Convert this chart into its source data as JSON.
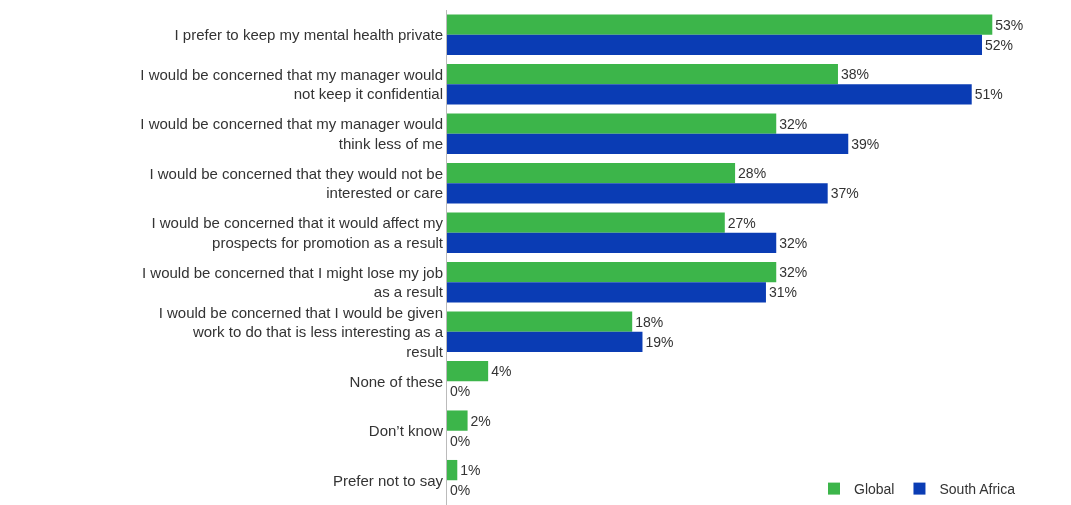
{
  "chart_data": {
    "type": "bar",
    "orientation": "horizontal",
    "categories": [
      "I prefer to keep my mental health private",
      "I would be concerned that my manager would not keep it confidential",
      "I would be concerned that my manager would think less of me",
      "I would be concerned that they would not be interested or care",
      "I would be concerned that it would affect my prospects for promotion as a result",
      "I would be concerned that I might lose my job as a result",
      "I would be concerned that I would be given work to do that is less interesting as a result",
      "None of these",
      "Don’t know",
      "Prefer not to say"
    ],
    "series": [
      {
        "name": "Global",
        "color": "#3cb54a",
        "values": [
          53,
          38,
          32,
          28,
          27,
          32,
          18,
          4,
          2,
          1
        ],
        "value_labels": [
          "53%",
          "38%",
          "32%",
          "28%",
          "27%",
          "32%",
          "18%",
          "4%",
          "2%",
          "1%"
        ]
      },
      {
        "name": "South Africa",
        "color": "#0a3cb4",
        "values": [
          52,
          51,
          39,
          37,
          32,
          31,
          19,
          0,
          0,
          0
        ],
        "value_labels": [
          "52%",
          "51%",
          "39%",
          "37%",
          "32%",
          "31%",
          "19%",
          "0%",
          "0%",
          "0%"
        ]
      }
    ],
    "tick_labels": "y",
    "grid": false,
    "legend": "bottom right"
  }
}
